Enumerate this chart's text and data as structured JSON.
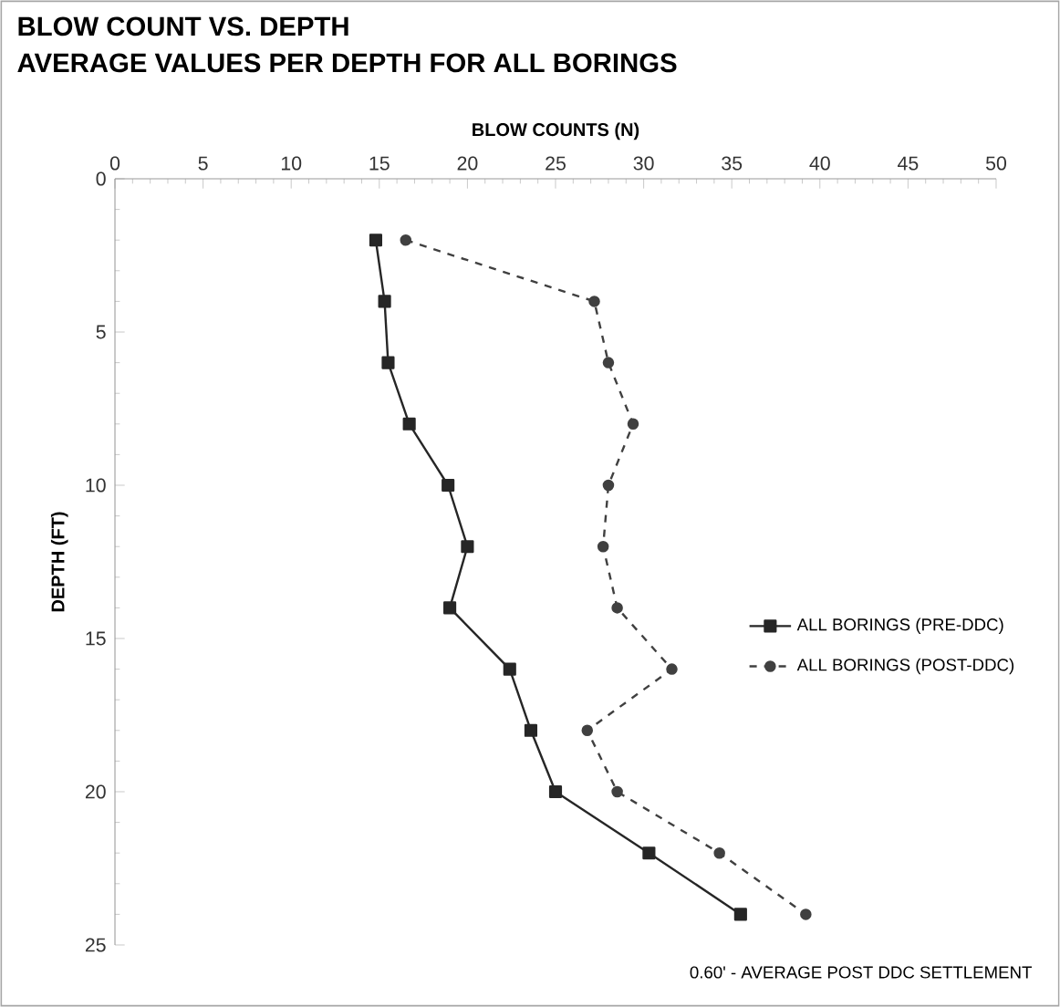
{
  "chart_data": {
    "type": "line",
    "title": "BLOW COUNT VS. DEPTH",
    "subtitle": "AVERAGE VALUES PER DEPTH FOR ALL BORINGS",
    "xlabel": "BLOW COUNTS (N)",
    "ylabel": "DEPTH (FT)",
    "xlim": [
      0,
      50
    ],
    "xticks": [
      0,
      5,
      10,
      15,
      20,
      25,
      30,
      35,
      40,
      45,
      50
    ],
    "ylim": [
      25,
      0
    ],
    "yticks": [
      0,
      5,
      10,
      15,
      20,
      25
    ],
    "legend": "right",
    "series": [
      {
        "name": "ALL BORINGS (PRE-DDC)",
        "color": "#262626",
        "marker": "square",
        "line_style": "solid",
        "x": [
          14.8,
          15.3,
          15.5,
          16.7,
          18.9,
          20.0,
          19.0,
          22.4,
          23.6,
          25.0,
          30.3,
          35.5
        ],
        "values": [
          2,
          4,
          6,
          8,
          10,
          12,
          14,
          16,
          18,
          20,
          22,
          24
        ]
      },
      {
        "name": "ALL BORINGS (POST-DDC)",
        "color": "#404040",
        "marker": "circle",
        "line_style": "dashed",
        "x": [
          16.5,
          27.2,
          28.0,
          29.4,
          28.0,
          27.7,
          28.5,
          31.6,
          26.8,
          28.5,
          34.3,
          39.2
        ],
        "values": [
          2,
          4,
          6,
          8,
          10,
          12,
          14,
          16,
          18,
          20,
          22,
          24
        ]
      }
    ],
    "annotations": [
      "0.60' - AVERAGE POST DDC SETTLEMENT"
    ]
  }
}
